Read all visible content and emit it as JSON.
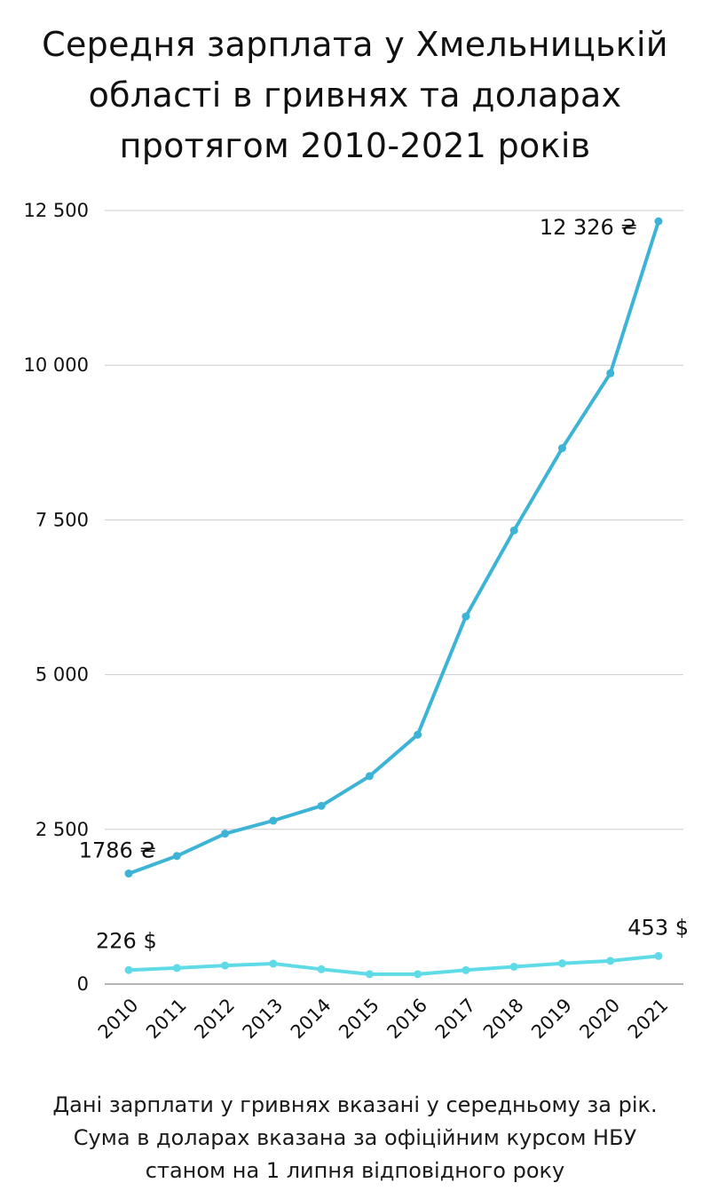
{
  "title_lines": [
    "Середня зарплата у Хмельницькій",
    "області в гривнях та доларах",
    "протягом 2010-2021 років"
  ],
  "footnote_lines": [
    "Дані зарплати у гривнях вказані у середньому за рік.",
    "Сума в доларах вказана за офіційним курсом НБУ",
    "станом на 1 липня відповідного року"
  ],
  "colors": {
    "uah_line": "#3db3d6",
    "usd_line": "#5fdbe8",
    "grid": "#cccccc",
    "axis": "#888888"
  },
  "chart_data": {
    "type": "line",
    "categories": [
      "2010",
      "2011",
      "2012",
      "2013",
      "2014",
      "2015",
      "2016",
      "2017",
      "2018",
      "2019",
      "2020",
      "2021"
    ],
    "series": [
      {
        "key": "uah",
        "values": [
          1786,
          2070,
          2430,
          2640,
          2880,
          3360,
          4030,
          5940,
          7330,
          8660,
          9870,
          12326
        ]
      },
      {
        "key": "usd",
        "values": [
          226,
          260,
          300,
          330,
          240,
          160,
          160,
          225,
          280,
          335,
          375,
          453
        ]
      }
    ],
    "ylim": [
      0,
      12500
    ],
    "yticks": [
      0,
      2500,
      5000,
      7500,
      10000,
      12500
    ],
    "ytick_labels": [
      "0",
      "2 500",
      "5 000",
      "7 500",
      "10 000",
      "12 500"
    ],
    "grid": true,
    "annotations": {
      "uah_first": "1786 ₴",
      "uah_last": "12 326 ₴",
      "usd_first": "226 $",
      "usd_last": "453 $"
    }
  }
}
